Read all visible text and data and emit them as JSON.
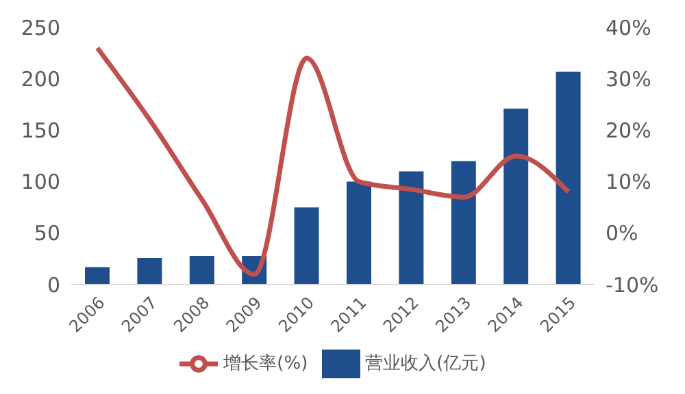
{
  "chart_data": {
    "type": "bar",
    "categories": [
      "2006",
      "2007",
      "2008",
      "2009",
      "2010",
      "2011",
      "2012",
      "2013",
      "2014",
      "2015"
    ],
    "series": [
      {
        "name": "营业收入(亿元)",
        "color": "#1f4e8c",
        "values": [
          17,
          26,
          28,
          28,
          75,
          100,
          110,
          120,
          171,
          207
        ]
      },
      {
        "name": "增长率(%)",
        "type": "line",
        "axis": "y2",
        "color": "#c0504d",
        "values": [
          36,
          22,
          6.5,
          -8,
          34,
          10,
          8.5,
          7,
          15,
          8
        ]
      }
    ],
    "ylim": [
      0,
      250
    ],
    "yticks": [
      0,
      50,
      100,
      150,
      200,
      250
    ],
    "y2lim": [
      -10,
      40
    ],
    "y2ticks": [
      {
        "value": -10,
        "label": "-10%"
      },
      {
        "value": 0,
        "label": "0%"
      },
      {
        "value": 10,
        "label": "10%"
      },
      {
        "value": 20,
        "label": "20%"
      },
      {
        "value": 30,
        "label": "30%"
      },
      {
        "value": 40,
        "label": "40%"
      }
    ],
    "grid": false,
    "legend": "bottom"
  }
}
